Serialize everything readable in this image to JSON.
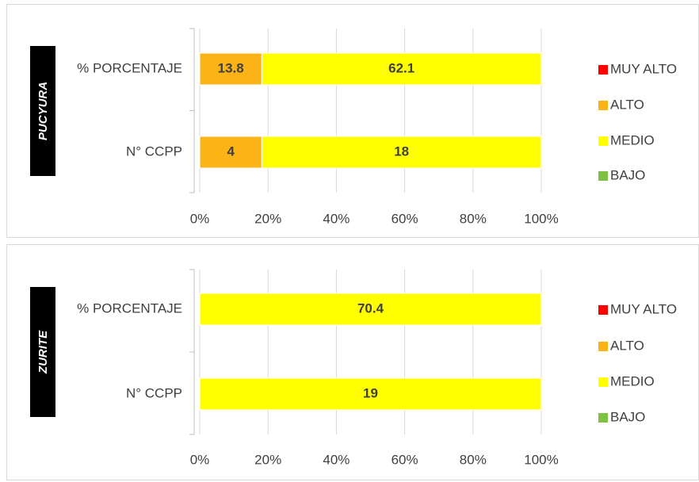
{
  "chart_data": [
    {
      "type": "bar",
      "orientation": "horizontal",
      "stacked": "percent",
      "title": "PUCYURA",
      "categories": [
        "% PORCENTAJE",
        "N° CCPP"
      ],
      "series": [
        {
          "name": "MUY ALTO",
          "color": "#ff0000",
          "values": [
            null,
            null
          ]
        },
        {
          "name": "ALTO",
          "color": "#fbb316",
          "values": [
            13.8,
            4
          ]
        },
        {
          "name": "MEDIO",
          "color": "#ffff00",
          "values": [
            62.1,
            18
          ]
        },
        {
          "name": "BAJO",
          "color": "#7dc242",
          "values": [
            null,
            null
          ]
        }
      ],
      "xlim": [
        0,
        100
      ],
      "xticks": [
        {
          "value": 0,
          "label": "0%"
        },
        {
          "value": 20,
          "label": "20%"
        },
        {
          "value": 40,
          "label": "40%"
        },
        {
          "value": 60,
          "label": "60%"
        },
        {
          "value": 80,
          "label": "80%"
        },
        {
          "value": 100,
          "label": "100%"
        }
      ],
      "grid": true,
      "legend": "right"
    },
    {
      "type": "bar",
      "orientation": "horizontal",
      "stacked": "percent",
      "title": "ZURITE",
      "categories": [
        "% PORCENTAJE",
        "N° CCPP"
      ],
      "series": [
        {
          "name": "MUY ALTO",
          "color": "#ff0000",
          "values": [
            null,
            null
          ]
        },
        {
          "name": "ALTO",
          "color": "#fbb316",
          "values": [
            null,
            null
          ]
        },
        {
          "name": "MEDIO",
          "color": "#ffff00",
          "values": [
            70.4,
            19
          ]
        },
        {
          "name": "BAJO",
          "color": "#7dc242",
          "values": [
            null,
            null
          ]
        }
      ],
      "xlim": [
        0,
        100
      ],
      "xticks": [
        {
          "value": 0,
          "label": "0%"
        },
        {
          "value": 20,
          "label": "20%"
        },
        {
          "value": 40,
          "label": "40%"
        },
        {
          "value": 60,
          "label": "60%"
        },
        {
          "value": 80,
          "label": "80%"
        },
        {
          "value": 100,
          "label": "100%"
        }
      ],
      "grid": true,
      "legend": "right"
    }
  ]
}
